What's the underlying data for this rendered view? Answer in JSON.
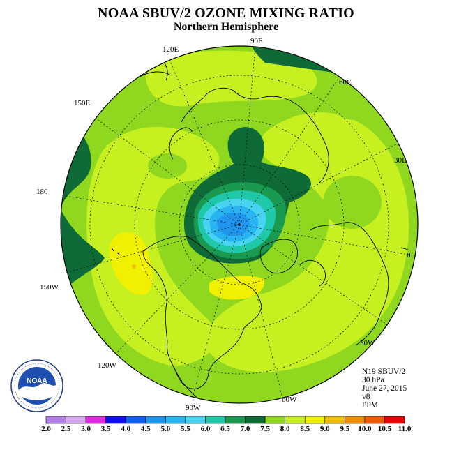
{
  "title": "NOAA SBUV/2 OZONE MIXING RATIO",
  "subtitle": "Northern Hemisphere",
  "longitude_labels": {
    "e120": "120E",
    "e90": "90E",
    "e60": "60E",
    "e150": "150E",
    "e30": "30E",
    "d180": "180",
    "d0": "0",
    "w150": "150W",
    "w30": "30W",
    "w120": "120W",
    "w60": "60W",
    "w90": "90W"
  },
  "info": {
    "satellite": "N19 SBUV/2",
    "level": "30 hPa",
    "date": "June 27, 2015",
    "version": "v8",
    "units": "PPM"
  },
  "logo": {
    "text": "NOAA",
    "ring_text": "NATIONAL OCEANIC AND ATMOSPHERIC ADMINISTRATION · U.S. DEPARTMENT OF COMMERCE"
  },
  "colorbar": {
    "labels": [
      "2.0",
      "2.5",
      "3.0",
      "3.5",
      "4.0",
      "4.5",
      "5.0",
      "5.5",
      "6.0",
      "6.5",
      "7.0",
      "7.5",
      "8.0",
      "8.5",
      "9.0",
      "9.5",
      "10.0",
      "10.5",
      "11.0"
    ],
    "colors": [
      "#b57ee6",
      "#d8a8f0",
      "#e02ae0",
      "#1010ee",
      "#1060f0",
      "#1e96ee",
      "#28b4f0",
      "#48d4f0",
      "#1ec8a8",
      "#1a9a50",
      "#0e6a36",
      "#90d820",
      "#c6f020",
      "#f0f000",
      "#f0c000",
      "#f09000",
      "#f05a00",
      "#e80000",
      "#8a4a2a"
    ]
  }
}
